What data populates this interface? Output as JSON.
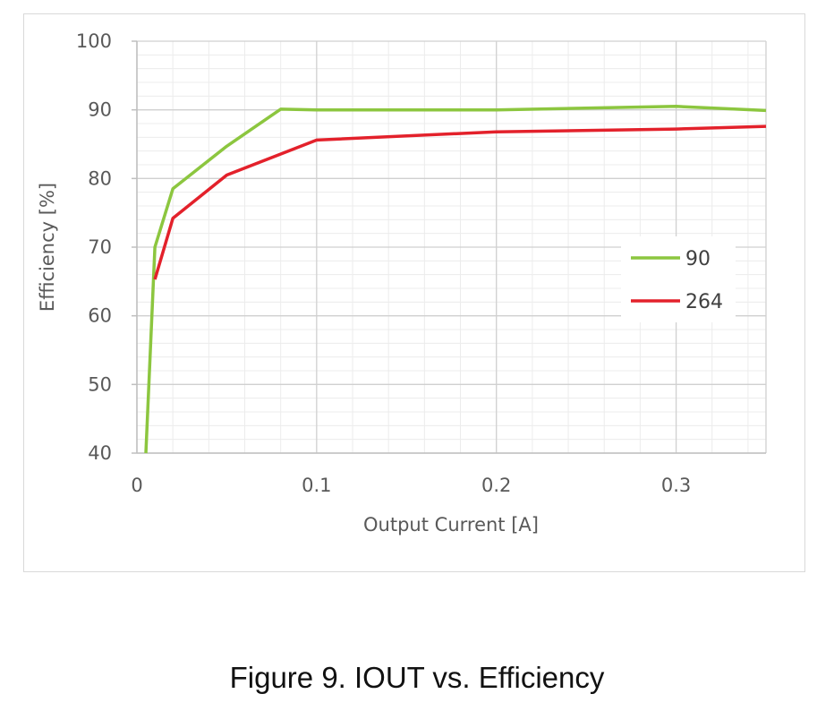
{
  "chart_data": {
    "type": "line",
    "xlabel": "Output Current [A]",
    "ylabel": "Efficiency [%]",
    "xlim": [
      0,
      0.35
    ],
    "ylim": [
      40,
      100
    ],
    "x_ticks": [
      "0",
      "0.1",
      "0.2",
      "0.3"
    ],
    "y_ticks": [
      "40",
      "50",
      "60",
      "70",
      "80",
      "90",
      "100"
    ],
    "grid": true,
    "legend_position": "right",
    "series": [
      {
        "name": "90",
        "color": "#8cc63f",
        "points": [
          [
            0.005,
            40
          ],
          [
            0.01,
            70
          ],
          [
            0.02,
            78.5
          ],
          [
            0.05,
            84.7
          ],
          [
            0.08,
            90.1
          ],
          [
            0.1,
            90
          ],
          [
            0.2,
            90
          ],
          [
            0.3,
            90.5
          ],
          [
            0.35,
            89.9
          ]
        ]
      },
      {
        "name": "264",
        "color": "#e3212b",
        "points": [
          [
            0.01,
            65.3
          ],
          [
            0.02,
            74.2
          ],
          [
            0.05,
            80.5
          ],
          [
            0.1,
            85.6
          ],
          [
            0.2,
            86.8
          ],
          [
            0.3,
            87.2
          ],
          [
            0.35,
            87.6
          ]
        ]
      }
    ]
  },
  "caption": "Figure 9. IOUT vs. Efficiency"
}
